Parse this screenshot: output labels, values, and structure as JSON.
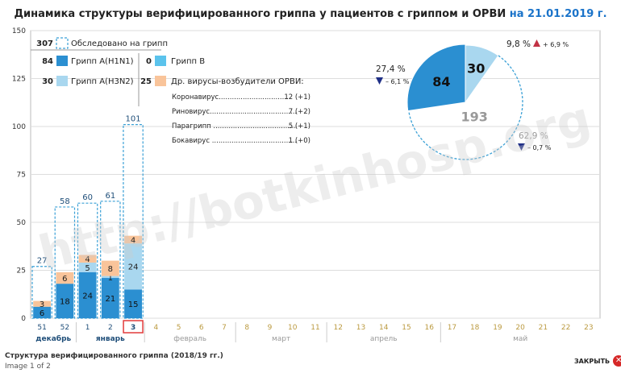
{
  "header": {
    "title_main": "Динамика структуры верифицированного гриппа у пациентов с гриппом и ОРВИ ",
    "title_date": "на 21.01.2019 г."
  },
  "chart_data": {
    "type": "bar",
    "ylim": [
      0,
      150
    ],
    "yticks": [
      "0",
      "25",
      "50",
      "75",
      "100",
      "125",
      "150"
    ],
    "x_labels": [
      "51",
      "52",
      "1",
      "2",
      "3",
      "4",
      "5",
      "6",
      "7",
      "8",
      "9",
      "10",
      "11",
      "12",
      "13",
      "14",
      "15",
      "16",
      "17",
      "18",
      "19",
      "20",
      "21",
      "22",
      "23"
    ],
    "highlight_index": 4,
    "months": [
      "декабрь",
      "январь",
      "февраль",
      "март",
      "апрель",
      "май"
    ],
    "stacks": [
      {
        "total": 27,
        "h1n1": 6,
        "h3n2": 0,
        "b": 0,
        "other": 3
      },
      {
        "total": 58,
        "h1n1": 18,
        "h3n2": 0,
        "b": 0,
        "other": 6
      },
      {
        "total": 60,
        "h1n1": 24,
        "h3n2": 5,
        "b": 0,
        "other": 4
      },
      {
        "total": 61,
        "h1n1": 21,
        "h3n2": 1,
        "b": 0,
        "other": 8
      },
      {
        "total": 101,
        "h1n1": 15,
        "h3n2": 24,
        "b": 0,
        "other": 4
      }
    ],
    "legend": {
      "examined": {
        "value": "307",
        "label": "Обследовано на грипп"
      },
      "h1n1": {
        "value": "84",
        "label": "Грипп А(H1N1)"
      },
      "h3n2": {
        "value": "30",
        "label": "Грипп А(H3N2)"
      },
      "b": {
        "value": "0",
        "label": "Грипп В"
      },
      "other": {
        "value": "25",
        "label": "Др. вирусы-возбудители ОРВИ:"
      }
    },
    "other_viruses": [
      {
        "name": "Коронавирус.................................",
        "value": "12 (+1)"
      },
      {
        "name": "Риновирус........................................",
        "value": "7 (+2)"
      },
      {
        "name": "Парагрипп ......................................",
        "value": "5 (+1)"
      },
      {
        "name": "Бокавирус .......................................",
        "value": "1 (+0)"
      }
    ],
    "pie": {
      "slices": [
        {
          "name": "h1n1",
          "value": 84,
          "label": "84"
        },
        {
          "name": "h3n2",
          "value": 30,
          "label": "30"
        },
        {
          "name": "negative",
          "value": 193,
          "label": "193"
        }
      ],
      "annotations": {
        "h1n1_pct": "27,4 %",
        "h1n1_delta": "– 6,1 %",
        "h3n2_pct": "9,8 %",
        "h3n2_delta": "+ 6,9 %",
        "neg_pct": "62,9 %",
        "neg_delta": "– 0,7 %"
      }
    }
  },
  "colors": {
    "h1n1": "#2b8fd1",
    "h3n2": "#a9d7ef",
    "b": "#5bc3ec",
    "other": "#f9c49a",
    "dashed": "#3aa0d6",
    "highlight": "#e23a3a",
    "up": "#c23245",
    "down": "#1f2f86"
  },
  "watermark": "http://botkinhosp.org",
  "footer": {
    "caption": "Структура верифицированного гриппа (2018/19 гг.)",
    "page": "Image 1 of 2",
    "close": "ЗАКРЫТЬ"
  }
}
